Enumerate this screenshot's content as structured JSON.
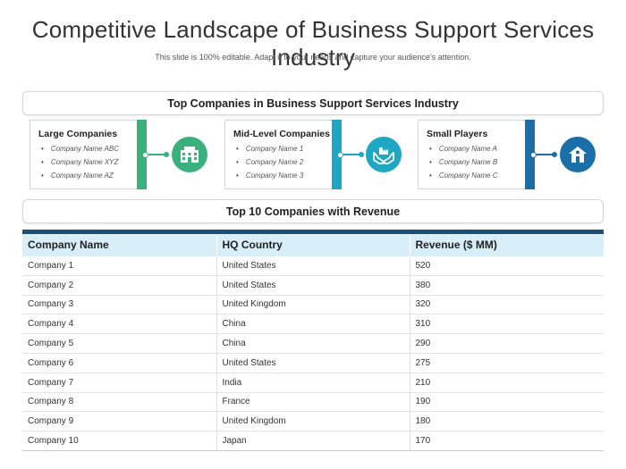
{
  "page": {
    "title": "Competitive Landscape of Business Support Services Industry",
    "subtitle": "This slide is 100% editable. Adapt it to your needs and capture your audience’s attention."
  },
  "top_companies": {
    "heading": "Top Companies in Business Support Services Industry",
    "cards": [
      {
        "title": "Large Companies",
        "items": [
          "Company Name ABC",
          "Company Name XYZ",
          "Company Name AZ"
        ],
        "icon": "building-icon",
        "color": "#3ab07c"
      },
      {
        "title": "Mid-Level Companies",
        "items": [
          "Company Name 1",
          "Company Name 2",
          "Company Name 3"
        ],
        "icon": "factory-hands-icon",
        "color": "#1ea7c2"
      },
      {
        "title": "Small Players",
        "items": [
          "Company Name A",
          "Company Name B",
          "Company Name C"
        ],
        "icon": "house-pin-icon",
        "color": "#1b6fa8"
      }
    ]
  },
  "revenue_table": {
    "heading": "Top 10 Companies with Revenue",
    "header_color": "#1d4e73",
    "columns": [
      "Company Name",
      "HQ Country",
      "Revenue ($ MM)"
    ],
    "rows": [
      [
        "Company 1",
        "United States",
        "520"
      ],
      [
        "Company 2",
        "United States",
        "380"
      ],
      [
        "Company 3",
        "United Kingdom",
        "320"
      ],
      [
        "Company 4",
        "China",
        "310"
      ],
      [
        "Company 5",
        "China",
        "290"
      ],
      [
        "Company 6",
        "United States",
        "275"
      ],
      [
        "Company 7",
        "India",
        "210"
      ],
      [
        "Company 8",
        "France",
        "190"
      ],
      [
        "Company 9",
        "United Kingdom",
        "180"
      ],
      [
        "Company 10",
        "Japan",
        "170"
      ]
    ]
  }
}
